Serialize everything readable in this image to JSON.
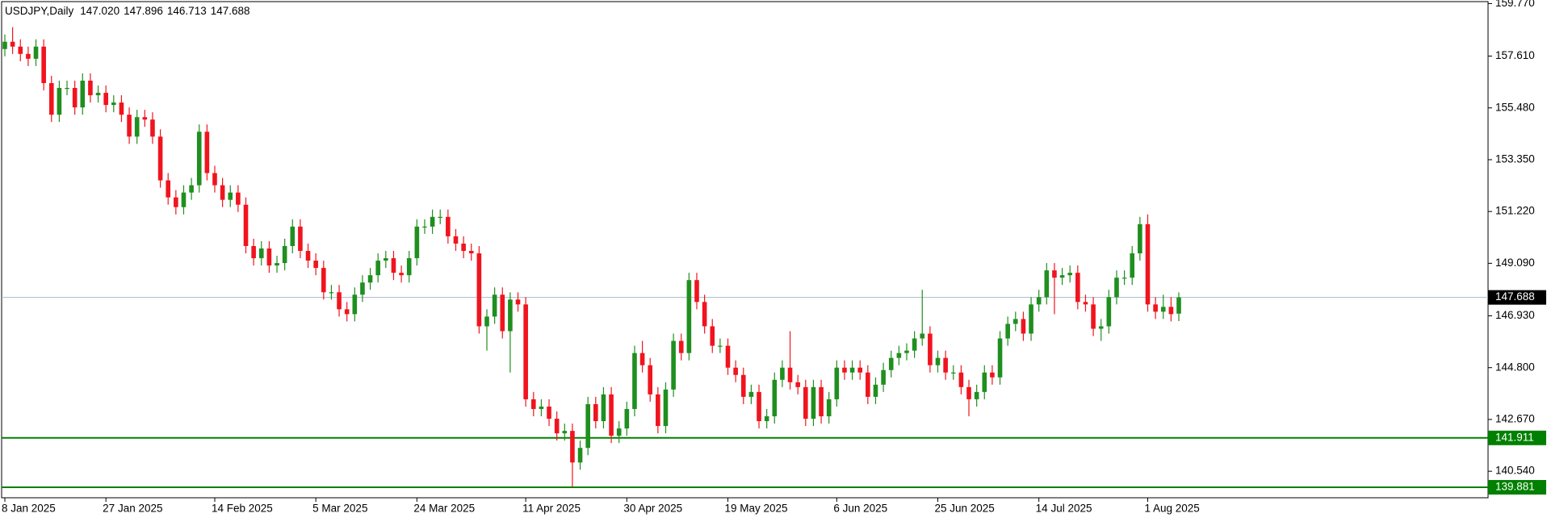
{
  "chart_data": {
    "type": "candlestick",
    "title": "USDJPY,Daily",
    "quote_labels": [
      "147.020",
      "147.896",
      "146.713",
      "147.688"
    ],
    "categories": [
      "8 Jan 2025",
      null,
      null,
      null,
      null,
      null,
      null,
      null,
      null,
      null,
      null,
      null,
      null,
      "27 Jan 2025",
      null,
      null,
      null,
      null,
      null,
      null,
      null,
      null,
      null,
      null,
      null,
      null,
      null,
      "14 Feb 2025",
      null,
      null,
      null,
      null,
      null,
      null,
      null,
      null,
      null,
      null,
      null,
      null,
      "5 Mar 2025",
      null,
      null,
      null,
      null,
      null,
      null,
      null,
      null,
      null,
      null,
      null,
      null,
      "24 Mar 2025",
      null,
      null,
      null,
      null,
      null,
      null,
      null,
      null,
      null,
      null,
      null,
      null,
      null,
      "11 Apr 2025",
      null,
      null,
      null,
      null,
      null,
      null,
      null,
      null,
      null,
      null,
      null,
      null,
      "30 Apr 2025",
      null,
      null,
      null,
      null,
      null,
      null,
      null,
      null,
      null,
      null,
      null,
      null,
      "19 May 2025",
      null,
      null,
      null,
      null,
      null,
      null,
      null,
      null,
      null,
      null,
      null,
      null,
      null,
      "6 Jun 2025",
      null,
      null,
      null,
      null,
      null,
      null,
      null,
      null,
      null,
      null,
      null,
      null,
      "25 Jun 2025",
      null,
      null,
      null,
      null,
      null,
      null,
      null,
      null,
      null,
      null,
      null,
      null,
      "14 Jul 2025",
      null,
      null,
      null,
      null,
      null,
      null,
      null,
      null,
      null,
      null,
      null,
      null,
      null,
      "1 Aug 2025",
      null,
      null,
      null,
      null
    ],
    "ohlc": [
      [
        157.9,
        158.5,
        157.6,
        158.2
      ],
      [
        158.2,
        158.8,
        157.7,
        158.0
      ],
      [
        158.0,
        158.3,
        157.4,
        157.7
      ],
      [
        157.7,
        158.0,
        157.2,
        157.5
      ],
      [
        157.5,
        158.3,
        157.2,
        158.0
      ],
      [
        158.0,
        158.3,
        156.2,
        156.5
      ],
      [
        156.5,
        156.8,
        154.9,
        155.2
      ],
      [
        155.2,
        156.6,
        154.9,
        156.3
      ],
      [
        156.3,
        156.6,
        156.0,
        156.3
      ],
      [
        156.3,
        156.6,
        155.2,
        155.5
      ],
      [
        155.5,
        156.9,
        155.2,
        156.6
      ],
      [
        156.6,
        156.9,
        155.7,
        156.0
      ],
      [
        156.0,
        156.4,
        155.7,
        156.1
      ],
      [
        156.1,
        156.4,
        155.3,
        155.6
      ],
      [
        155.6,
        156.0,
        155.3,
        155.7
      ],
      [
        155.7,
        156.0,
        154.9,
        155.2
      ],
      [
        155.2,
        155.5,
        154.0,
        154.3
      ],
      [
        154.3,
        155.4,
        154.0,
        155.1
      ],
      [
        155.1,
        155.4,
        154.7,
        155.0
      ],
      [
        155.0,
        155.3,
        154.0,
        154.3
      ],
      [
        154.3,
        154.6,
        152.2,
        152.5
      ],
      [
        152.5,
        152.8,
        151.5,
        151.8
      ],
      [
        151.8,
        152.1,
        151.1,
        151.4
      ],
      [
        151.4,
        152.3,
        151.1,
        152.0
      ],
      [
        152.0,
        152.6,
        151.7,
        152.3
      ],
      [
        152.3,
        154.8,
        152.0,
        154.5
      ],
      [
        154.5,
        154.8,
        152.5,
        152.8
      ],
      [
        152.8,
        153.1,
        152.0,
        152.3
      ],
      [
        152.3,
        152.6,
        151.4,
        151.7
      ],
      [
        151.7,
        152.3,
        151.4,
        152.0
      ],
      [
        152.0,
        152.3,
        151.2,
        151.5
      ],
      [
        151.5,
        151.8,
        149.5,
        149.8
      ],
      [
        149.8,
        150.1,
        149.0,
        149.3
      ],
      [
        149.3,
        150.0,
        149.0,
        149.7
      ],
      [
        149.7,
        150.0,
        148.7,
        149.0
      ],
      [
        149.0,
        149.4,
        148.7,
        149.1
      ],
      [
        149.1,
        150.1,
        148.8,
        149.8
      ],
      [
        149.8,
        150.9,
        149.5,
        150.6
      ],
      [
        150.6,
        150.9,
        149.3,
        149.6
      ],
      [
        149.6,
        149.9,
        148.9,
        149.2
      ],
      [
        149.2,
        149.5,
        148.6,
        148.9
      ],
      [
        148.9,
        149.2,
        147.6,
        147.9
      ],
      [
        147.9,
        148.2,
        147.6,
        147.9
      ],
      [
        147.9,
        148.2,
        146.9,
        147.2
      ],
      [
        147.2,
        147.5,
        146.7,
        147.0
      ],
      [
        147.0,
        148.1,
        146.7,
        147.8
      ],
      [
        147.8,
        148.6,
        147.5,
        148.3
      ],
      [
        148.3,
        148.9,
        148.0,
        148.6
      ],
      [
        148.6,
        149.5,
        148.3,
        149.2
      ],
      [
        149.2,
        149.6,
        148.9,
        149.3
      ],
      [
        149.3,
        149.6,
        148.4,
        148.7
      ],
      [
        148.7,
        149.0,
        148.3,
        148.6
      ],
      [
        148.6,
        149.6,
        148.3,
        149.3
      ],
      [
        149.3,
        150.9,
        149.0,
        150.6
      ],
      [
        150.6,
        150.9,
        150.3,
        150.6
      ],
      [
        150.6,
        151.3,
        150.3,
        151.0
      ],
      [
        151.0,
        151.3,
        150.7,
        151.0
      ],
      [
        151.0,
        151.3,
        149.9,
        150.2
      ],
      [
        150.2,
        150.5,
        149.6,
        149.9
      ],
      [
        149.9,
        150.2,
        149.3,
        149.6
      ],
      [
        149.6,
        149.9,
        149.2,
        149.5
      ],
      [
        149.5,
        149.8,
        146.2,
        146.5
      ],
      [
        146.5,
        147.2,
        145.5,
        146.9
      ],
      [
        146.9,
        148.1,
        146.6,
        147.8
      ],
      [
        147.8,
        148.1,
        146.0,
        146.3
      ],
      [
        146.3,
        147.9,
        144.6,
        147.6
      ],
      [
        147.6,
        147.9,
        147.1,
        147.4
      ],
      [
        147.4,
        147.7,
        143.2,
        143.5
      ],
      [
        143.5,
        143.8,
        142.8,
        143.1
      ],
      [
        143.1,
        143.5,
        142.8,
        143.2
      ],
      [
        143.2,
        143.5,
        142.4,
        142.7
      ],
      [
        142.7,
        143.0,
        141.8,
        142.1
      ],
      [
        142.1,
        142.5,
        141.8,
        142.2
      ],
      [
        142.2,
        142.5,
        139.9,
        140.9
      ],
      [
        140.9,
        141.8,
        140.6,
        141.5
      ],
      [
        141.5,
        143.6,
        141.2,
        143.3
      ],
      [
        143.3,
        143.6,
        142.3,
        142.6
      ],
      [
        142.6,
        144.0,
        142.3,
        143.7
      ],
      [
        143.7,
        144.0,
        141.7,
        142.0
      ],
      [
        142.0,
        142.6,
        141.7,
        142.3
      ],
      [
        142.3,
        143.4,
        142.0,
        143.1
      ],
      [
        143.1,
        145.7,
        142.8,
        145.4
      ],
      [
        145.4,
        145.9,
        144.6,
        144.9
      ],
      [
        144.9,
        145.2,
        143.4,
        143.7
      ],
      [
        143.7,
        144.0,
        142.1,
        142.4
      ],
      [
        142.4,
        144.2,
        142.1,
        143.9
      ],
      [
        143.9,
        146.2,
        143.6,
        145.9
      ],
      [
        145.9,
        146.2,
        145.1,
        145.4
      ],
      [
        145.4,
        148.7,
        145.1,
        148.4
      ],
      [
        148.4,
        148.7,
        147.2,
        147.5
      ],
      [
        147.5,
        147.8,
        146.2,
        146.5
      ],
      [
        146.5,
        146.8,
        145.4,
        145.7
      ],
      [
        145.7,
        146.0,
        145.4,
        145.7
      ],
      [
        145.7,
        146.0,
        144.5,
        144.8
      ],
      [
        144.8,
        145.1,
        144.2,
        144.5
      ],
      [
        144.5,
        144.8,
        143.3,
        143.6
      ],
      [
        143.6,
        144.1,
        143.3,
        143.8
      ],
      [
        143.8,
        144.1,
        142.3,
        142.6
      ],
      [
        142.6,
        143.1,
        142.3,
        142.8
      ],
      [
        142.8,
        144.6,
        142.5,
        144.3
      ],
      [
        144.3,
        145.1,
        144.0,
        144.8
      ],
      [
        144.8,
        146.3,
        143.9,
        144.2
      ],
      [
        144.2,
        144.5,
        143.7,
        144.0
      ],
      [
        144.0,
        144.3,
        142.4,
        142.7
      ],
      [
        142.7,
        144.3,
        142.4,
        144.0
      ],
      [
        144.0,
        144.3,
        142.5,
        142.8
      ],
      [
        142.8,
        143.8,
        142.5,
        143.5
      ],
      [
        143.5,
        145.1,
        143.2,
        144.8
      ],
      [
        144.8,
        145.1,
        144.3,
        144.6
      ],
      [
        144.6,
        145.1,
        144.3,
        144.8
      ],
      [
        144.8,
        145.1,
        144.3,
        144.6
      ],
      [
        144.6,
        144.9,
        143.3,
        143.6
      ],
      [
        143.6,
        144.4,
        143.3,
        144.1
      ],
      [
        144.1,
        145.0,
        143.8,
        144.7
      ],
      [
        144.7,
        145.5,
        144.4,
        145.2
      ],
      [
        145.2,
        145.7,
        144.9,
        145.4
      ],
      [
        145.4,
        145.8,
        145.1,
        145.5
      ],
      [
        145.5,
        146.3,
        145.2,
        146.0
      ],
      [
        146.0,
        148.0,
        145.7,
        146.2
      ],
      [
        146.2,
        146.5,
        144.6,
        144.9
      ],
      [
        144.9,
        145.5,
        144.6,
        145.2
      ],
      [
        145.2,
        145.5,
        144.3,
        144.6
      ],
      [
        144.6,
        144.9,
        144.3,
        144.6
      ],
      [
        144.6,
        144.9,
        143.7,
        144.0
      ],
      [
        144.0,
        144.3,
        142.8,
        143.5
      ],
      [
        143.5,
        144.1,
        143.2,
        143.8
      ],
      [
        143.8,
        144.9,
        143.5,
        144.6
      ],
      [
        144.6,
        144.9,
        144.1,
        144.4
      ],
      [
        144.4,
        146.3,
        144.1,
        146.0
      ],
      [
        146.0,
        146.9,
        145.7,
        146.6
      ],
      [
        146.6,
        147.1,
        146.3,
        146.8
      ],
      [
        146.8,
        147.1,
        145.9,
        146.2
      ],
      [
        146.2,
        147.7,
        145.9,
        147.4
      ],
      [
        147.4,
        148.0,
        147.1,
        147.7
      ],
      [
        147.7,
        149.1,
        147.4,
        148.8
      ],
      [
        148.8,
        149.1,
        147.0,
        148.5
      ],
      [
        148.5,
        148.9,
        148.2,
        148.6
      ],
      [
        148.6,
        149.0,
        148.3,
        148.7
      ],
      [
        148.7,
        149.0,
        147.2,
        147.5
      ],
      [
        147.5,
        147.8,
        147.1,
        147.4
      ],
      [
        147.4,
        147.7,
        146.1,
        146.4
      ],
      [
        146.4,
        146.8,
        145.9,
        146.5
      ],
      [
        146.5,
        148.0,
        146.2,
        147.7
      ],
      [
        147.7,
        148.8,
        147.4,
        148.5
      ],
      [
        148.5,
        148.8,
        148.2,
        148.5
      ],
      [
        148.5,
        149.8,
        148.2,
        149.5
      ],
      [
        149.5,
        151.0,
        149.2,
        150.7
      ],
      [
        150.7,
        151.1,
        147.1,
        147.4
      ],
      [
        147.4,
        147.7,
        146.8,
        147.1
      ],
      [
        147.1,
        147.8,
        146.8,
        147.3
      ],
      [
        147.3,
        147.7,
        146.7,
        147.0
      ],
      [
        147.02,
        147.896,
        146.713,
        147.688
      ]
    ],
    "up_color": "#1f8f1f",
    "down_color": "#f0141e",
    "ylim": [
      139.45,
      159.85
    ],
    "yticks": [
      {
        "value": 159.77,
        "label": "159.770"
      },
      {
        "value": 157.61,
        "label": "157.610"
      },
      {
        "value": 155.48,
        "label": "155.480"
      },
      {
        "value": 153.35,
        "label": "153.350"
      },
      {
        "value": 151.22,
        "label": "151.220"
      },
      {
        "value": 149.09,
        "label": "149.090"
      },
      {
        "value": 146.93,
        "label": "146.930"
      },
      {
        "value": 144.8,
        "label": "144.800"
      },
      {
        "value": 142.67,
        "label": "142.670"
      },
      {
        "value": 140.54,
        "label": "140.540"
      }
    ],
    "price_line": 147.688,
    "price_line_color": "#a8b8cc",
    "levels": [
      141.911,
      139.881
    ],
    "level_color": "#008000"
  }
}
